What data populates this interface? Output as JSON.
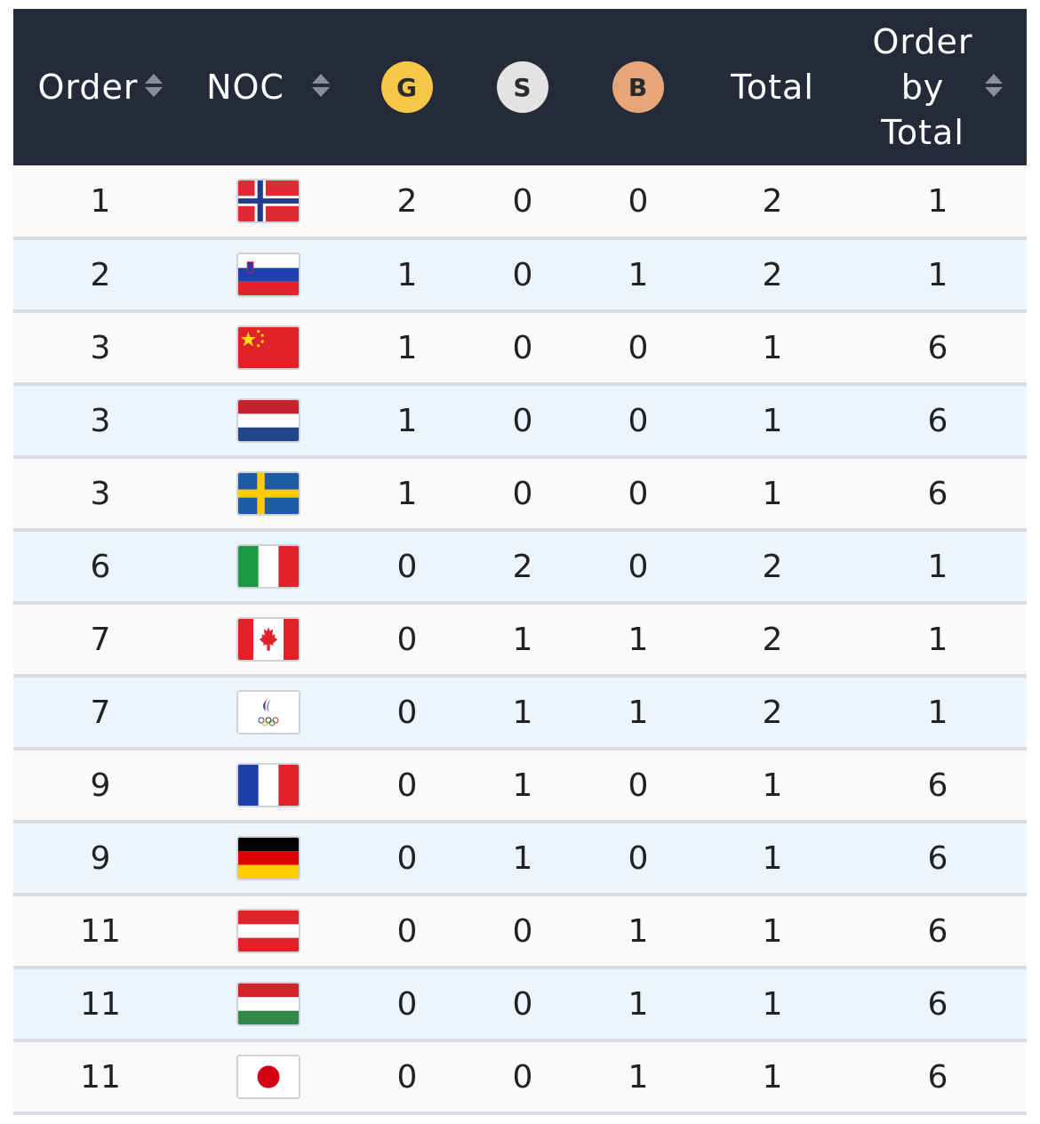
{
  "header": {
    "order": "Order",
    "noc": "NOC",
    "gold": "G",
    "silver": "S",
    "bronze": "B",
    "total": "Total",
    "order_by_total_lines": [
      "Order",
      "by",
      "Total"
    ]
  },
  "colors": {
    "header_bg": "#252a38",
    "gold": "#f7c847",
    "silver": "#e3e3e3",
    "bronze": "#e7a678",
    "row_odd": "#fafafa",
    "row_even": "#ecf5fc"
  },
  "rows": [
    {
      "order": "1",
      "flag": "norway-flag",
      "g": "2",
      "s": "0",
      "b": "0",
      "total": "2",
      "order_by_total": "1"
    },
    {
      "order": "2",
      "flag": "slovenia-flag",
      "g": "1",
      "s": "0",
      "b": "1",
      "total": "2",
      "order_by_total": "1"
    },
    {
      "order": "3",
      "flag": "china-flag",
      "g": "1",
      "s": "0",
      "b": "0",
      "total": "1",
      "order_by_total": "6"
    },
    {
      "order": "3",
      "flag": "netherlands-flag",
      "g": "1",
      "s": "0",
      "b": "0",
      "total": "1",
      "order_by_total": "6"
    },
    {
      "order": "3",
      "flag": "sweden-flag",
      "g": "1",
      "s": "0",
      "b": "0",
      "total": "1",
      "order_by_total": "6"
    },
    {
      "order": "6",
      "flag": "italy-flag",
      "g": "0",
      "s": "2",
      "b": "0",
      "total": "2",
      "order_by_total": "1"
    },
    {
      "order": "7",
      "flag": "canada-flag",
      "g": "0",
      "s": "1",
      "b": "1",
      "total": "2",
      "order_by_total": "1"
    },
    {
      "order": "7",
      "flag": "roc-flag",
      "g": "0",
      "s": "1",
      "b": "1",
      "total": "2",
      "order_by_total": "1"
    },
    {
      "order": "9",
      "flag": "france-flag",
      "g": "0",
      "s": "1",
      "b": "0",
      "total": "1",
      "order_by_total": "6"
    },
    {
      "order": "9",
      "flag": "germany-flag",
      "g": "0",
      "s": "1",
      "b": "0",
      "total": "1",
      "order_by_total": "6"
    },
    {
      "order": "11",
      "flag": "austria-flag",
      "g": "0",
      "s": "0",
      "b": "1",
      "total": "1",
      "order_by_total": "6"
    },
    {
      "order": "11",
      "flag": "hungary-flag",
      "g": "0",
      "s": "0",
      "b": "1",
      "total": "1",
      "order_by_total": "6"
    },
    {
      "order": "11",
      "flag": "japan-flag",
      "g": "0",
      "s": "0",
      "b": "1",
      "total": "1",
      "order_by_total": "6"
    }
  ]
}
